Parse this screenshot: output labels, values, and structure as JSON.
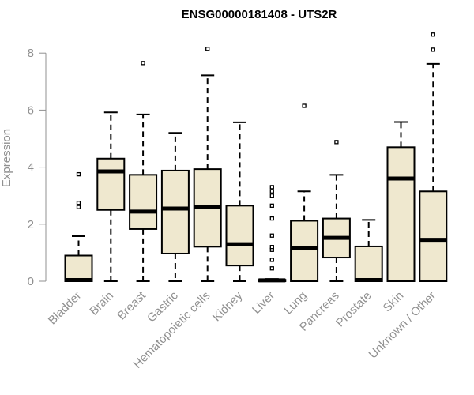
{
  "chart_data": {
    "type": "boxplot",
    "title": "ENSG00000181408 - UTS2R",
    "xlabel": "",
    "ylabel": "Expression",
    "ylim": [
      0,
      8.8
    ],
    "yticks": [
      "0",
      "2",
      "4",
      "6",
      "8"
    ],
    "grid": false,
    "colors": {
      "box_fill": "#efe8cf",
      "stroke": "#000000",
      "axis": "#909090"
    },
    "categories": [
      "Bladder",
      "Brain",
      "Breast",
      "Gastric",
      "Hematopoietic cells",
      "Kidney",
      "Liver",
      "Lung",
      "Pancreas",
      "Prostate",
      "Skin",
      "Unknown / Other"
    ],
    "boxes": [
      {
        "category": "Bladder",
        "min": 0,
        "q1": 0,
        "median": 0.04,
        "q3": 0.9,
        "max": 1.58,
        "outliers": [
          2.6,
          2.75,
          3.75
        ]
      },
      {
        "category": "Brain",
        "min": 0,
        "q1": 2.5,
        "median": 3.85,
        "q3": 4.3,
        "max": 5.92,
        "outliers": []
      },
      {
        "category": "Breast",
        "min": 0,
        "q1": 1.83,
        "median": 2.44,
        "q3": 3.73,
        "max": 5.85,
        "outliers": [
          7.65
        ]
      },
      {
        "category": "Gastric",
        "min": 0,
        "q1": 0.97,
        "median": 2.55,
        "q3": 3.88,
        "max": 5.2,
        "outliers": []
      },
      {
        "category": "Hematopoietic cells",
        "min": 0,
        "q1": 1.21,
        "median": 2.6,
        "q3": 3.93,
        "max": 7.22,
        "outliers": [
          8.15
        ]
      },
      {
        "category": "Kidney",
        "min": 0,
        "q1": 0.55,
        "median": 1.3,
        "q3": 2.65,
        "max": 5.57,
        "outliers": []
      },
      {
        "category": "Liver",
        "min": 0,
        "q1": 0,
        "median": 0.03,
        "q3": 0.05,
        "max": 0.08,
        "outliers": [
          0.45,
          0.75,
          1.1,
          1.2,
          1.6,
          2.2,
          2.65,
          3.0,
          3.15,
          3.3
        ]
      },
      {
        "category": "Lung",
        "min": 0,
        "q1": 0,
        "median": 1.15,
        "q3": 2.12,
        "max": 3.15,
        "outliers": [
          6.15
        ]
      },
      {
        "category": "Pancreas",
        "min": 0,
        "q1": 0.83,
        "median": 1.52,
        "q3": 2.2,
        "max": 3.73,
        "outliers": [
          4.88
        ]
      },
      {
        "category": "Prostate",
        "min": 0,
        "q1": 0,
        "median": 0.04,
        "q3": 1.22,
        "max": 2.15,
        "outliers": []
      },
      {
        "category": "Skin",
        "min": 0,
        "q1": 0,
        "median": 3.6,
        "q3": 4.7,
        "max": 5.58,
        "outliers": []
      },
      {
        "category": "Unknown / Other",
        "min": 0,
        "q1": 0,
        "median": 1.45,
        "q3": 3.15,
        "max": 7.62,
        "outliers": [
          8.12,
          8.65
        ]
      }
    ]
  }
}
